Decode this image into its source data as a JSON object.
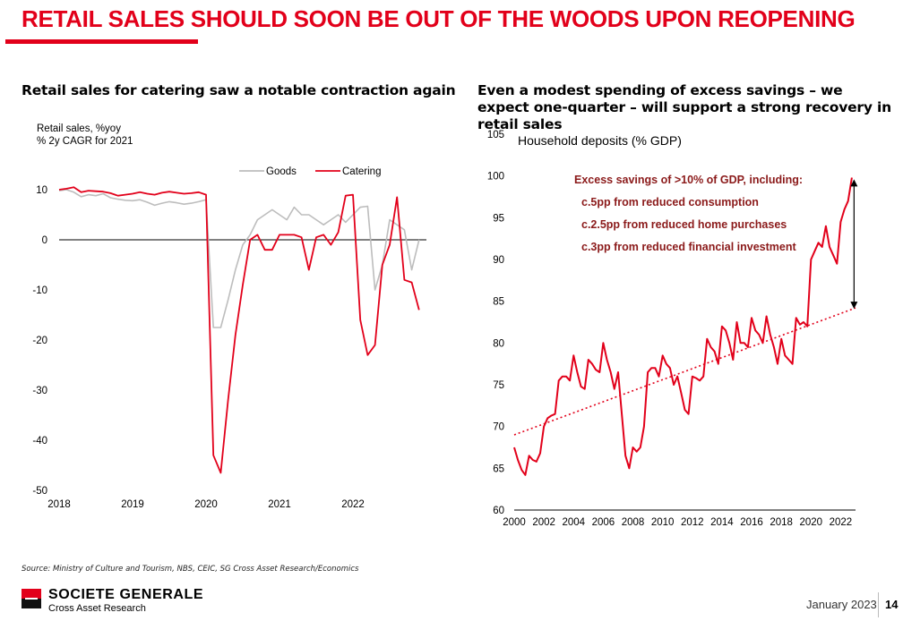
{
  "page": {
    "title": "RETAIL SALES SHOULD SOON BE OUT OF THE WOODS UPON REOPENING",
    "source": "Source: Ministry of Culture and Tourism, NBS, CEIC, SG Cross Asset Research/Economics",
    "footer_date": "January 2023",
    "page_number": "14",
    "brand": {
      "name": "SOCIETE GENERALE",
      "sub": "Cross Asset Research"
    },
    "colors": {
      "accent": "#e2001a",
      "goods": "#bdbdbd",
      "text": "#000000"
    }
  },
  "chart_data": [
    {
      "type": "line",
      "heading": "Retail sales for catering saw a notable contraction again",
      "ylabel_lines": [
        "Retail sales, %yoy",
        "% 2y CAGR for 2021"
      ],
      "ylim": [
        -50,
        10
      ],
      "yticks": [
        10,
        0,
        -10,
        -20,
        -30,
        -40,
        -50
      ],
      "xlim": [
        2018,
        2023
      ],
      "xticks": [
        2018,
        2019,
        2020,
        2021,
        2022
      ],
      "legend": [
        "Goods",
        "Catering"
      ],
      "series": [
        {
          "name": "Goods",
          "color": "#bdbdbd",
          "x": [
            2018.0,
            2018.1,
            2018.2,
            2018.3,
            2018.4,
            2018.5,
            2018.6,
            2018.7,
            2018.8,
            2018.9,
            2019.0,
            2019.1,
            2019.2,
            2019.3,
            2019.4,
            2019.5,
            2019.6,
            2019.7,
            2019.8,
            2019.9,
            2020.0,
            2020.1,
            2020.2,
            2020.3,
            2020.4,
            2020.5,
            2020.6,
            2020.7,
            2020.8,
            2020.9,
            2021.0,
            2021.1,
            2021.2,
            2021.3,
            2021.4,
            2021.5,
            2021.6,
            2021.7,
            2021.8,
            2021.9,
            2022.0,
            2022.1,
            2022.2,
            2022.3,
            2022.4,
            2022.5,
            2022.6,
            2022.7,
            2022.8,
            2022.9
          ],
          "values": [
            9.8,
            10.0,
            9.5,
            8.6,
            9.0,
            8.8,
            9.2,
            8.4,
            8.1,
            7.9,
            7.8,
            8.0,
            7.5,
            6.9,
            7.3,
            7.6,
            7.4,
            7.1,
            7.3,
            7.6,
            8.0,
            -17.5,
            -17.5,
            -12.0,
            -6.0,
            -1.0,
            1.0,
            4.0,
            5.0,
            6.0,
            5.0,
            4.0,
            6.5,
            5.0,
            5.0,
            4.0,
            3.0,
            4.0,
            5.0,
            3.5,
            5.0,
            6.5,
            6.7,
            -10.0,
            -5.0,
            4.0,
            3.0,
            2.0,
            -6.0,
            0.0
          ]
        },
        {
          "name": "Catering",
          "color": "#e2001a",
          "x": [
            2018.0,
            2018.1,
            2018.2,
            2018.3,
            2018.4,
            2018.5,
            2018.6,
            2018.7,
            2018.8,
            2018.9,
            2019.0,
            2019.1,
            2019.2,
            2019.3,
            2019.4,
            2019.5,
            2019.6,
            2019.7,
            2019.8,
            2019.9,
            2020.0,
            2020.1,
            2020.2,
            2020.3,
            2020.4,
            2020.5,
            2020.6,
            2020.7,
            2020.8,
            2020.9,
            2021.0,
            2021.1,
            2021.2,
            2021.3,
            2021.4,
            2021.5,
            2021.6,
            2021.7,
            2021.8,
            2021.9,
            2022.0,
            2022.1,
            2022.2,
            2022.3,
            2022.4,
            2022.5,
            2022.6,
            2022.7,
            2022.8,
            2022.9
          ],
          "values": [
            10.0,
            10.2,
            10.5,
            9.5,
            9.8,
            9.7,
            9.6,
            9.3,
            8.8,
            9.0,
            9.2,
            9.5,
            9.2,
            9.0,
            9.4,
            9.6,
            9.4,
            9.2,
            9.3,
            9.5,
            9.0,
            -43.0,
            -46.5,
            -32.0,
            -19.0,
            -9.0,
            0.0,
            1.0,
            -2.0,
            -2.0,
            1.0,
            1.0,
            1.0,
            0.5,
            -6.0,
            0.5,
            1.0,
            -1.0,
            1.5,
            8.8,
            9.0,
            -16.0,
            -23.0,
            -21.0,
            -5.0,
            -1.0,
            8.5,
            -8.0,
            -8.5,
            -14.0
          ]
        }
      ]
    },
    {
      "type": "line",
      "heading": "Even a modest spending of excess savings – we expect one-quarter – will support a strong recovery in retail sales",
      "ylabel": "Household deposits (% GDP)",
      "ylim": [
        60,
        105
      ],
      "yticks": [
        105,
        100,
        95,
        90,
        85,
        80,
        75,
        70,
        65,
        60
      ],
      "xlim": [
        2000,
        2023
      ],
      "xticks": [
        2000,
        2002,
        2004,
        2006,
        2008,
        2010,
        2012,
        2014,
        2016,
        2018,
        2020,
        2022
      ],
      "annotations": [
        "Excess savings of >10% of GDP, including:",
        "c.5pp from reduced consumption",
        "c.2.5pp from reduced home purchases",
        "c.3pp from reduced financial investment"
      ],
      "trend": {
        "name": "Trend",
        "x": [
          2000,
          2023
        ],
        "values": [
          69.0,
          84.2
        ]
      },
      "arrow": {
        "x": 2022.9,
        "from": 84.2,
        "to": 99.5
      },
      "series": [
        {
          "name": "Household deposits",
          "color": "#e2001a",
          "x": [
            2000.0,
            2000.25,
            2000.5,
            2000.75,
            2001.0,
            2001.25,
            2001.5,
            2001.75,
            2002.0,
            2002.25,
            2002.5,
            2002.75,
            2003.0,
            2003.25,
            2003.5,
            2003.75,
            2004.0,
            2004.25,
            2004.5,
            2004.75,
            2005.0,
            2005.25,
            2005.5,
            2005.75,
            2006.0,
            2006.25,
            2006.5,
            2006.75,
            2007.0,
            2007.25,
            2007.5,
            2007.75,
            2008.0,
            2008.25,
            2008.5,
            2008.75,
            2009.0,
            2009.25,
            2009.5,
            2009.75,
            2010.0,
            2010.25,
            2010.5,
            2010.75,
            2011.0,
            2011.25,
            2011.5,
            2011.75,
            2012.0,
            2012.25,
            2012.5,
            2012.75,
            2013.0,
            2013.25,
            2013.5,
            2013.75,
            2014.0,
            2014.25,
            2014.5,
            2014.75,
            2015.0,
            2015.25,
            2015.5,
            2015.75,
            2016.0,
            2016.25,
            2016.5,
            2016.75,
            2017.0,
            2017.25,
            2017.5,
            2017.75,
            2018.0,
            2018.25,
            2018.5,
            2018.75,
            2019.0,
            2019.25,
            2019.5,
            2019.75,
            2020.0,
            2020.25,
            2020.5,
            2020.75,
            2021.0,
            2021.25,
            2021.5,
            2021.75,
            2022.0,
            2022.25,
            2022.5,
            2022.75
          ],
          "values": [
            67.5,
            66.0,
            64.8,
            64.2,
            66.5,
            66.0,
            65.8,
            66.8,
            70.0,
            71.0,
            71.3,
            71.5,
            75.5,
            76.0,
            76.0,
            75.5,
            78.5,
            76.5,
            74.8,
            74.5,
            78.0,
            77.5,
            76.8,
            76.5,
            80.0,
            78.0,
            76.5,
            74.5,
            76.5,
            71.5,
            66.5,
            65.0,
            67.5,
            67.0,
            67.5,
            70.0,
            76.5,
            77.0,
            77.0,
            76.0,
            78.5,
            77.5,
            77.0,
            75.0,
            76.0,
            74.0,
            72.0,
            71.5,
            76.0,
            75.8,
            75.5,
            76.0,
            80.5,
            79.5,
            79.0,
            77.5,
            82.0,
            81.5,
            80.0,
            78.0,
            82.5,
            80.0,
            80.0,
            79.5,
            83.0,
            81.5,
            81.0,
            80.0,
            83.2,
            81.0,
            79.5,
            77.5,
            80.5,
            78.5,
            78.0,
            77.5,
            83.0,
            82.2,
            82.5,
            82.0,
            90.0,
            91.0,
            92.0,
            91.5,
            94.0,
            91.5,
            90.5,
            89.5,
            94.5,
            96.0,
            97.0,
            99.8
          ]
        }
      ]
    }
  ]
}
